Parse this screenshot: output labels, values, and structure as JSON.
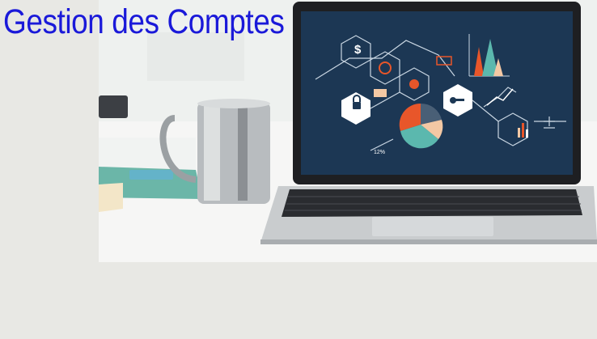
{
  "page": {
    "title": "Gestion des Comptes"
  },
  "laptop_screen": {
    "currency_symbol": "$",
    "percent_label": "12%"
  },
  "colors": {
    "title": "#1a19d9",
    "screen_bg": "#1c3754",
    "accent_orange": "#e8562a",
    "accent_teal": "#5bb8ae",
    "accent_peach": "#f3c8a4",
    "background": "#e8e8e4"
  }
}
